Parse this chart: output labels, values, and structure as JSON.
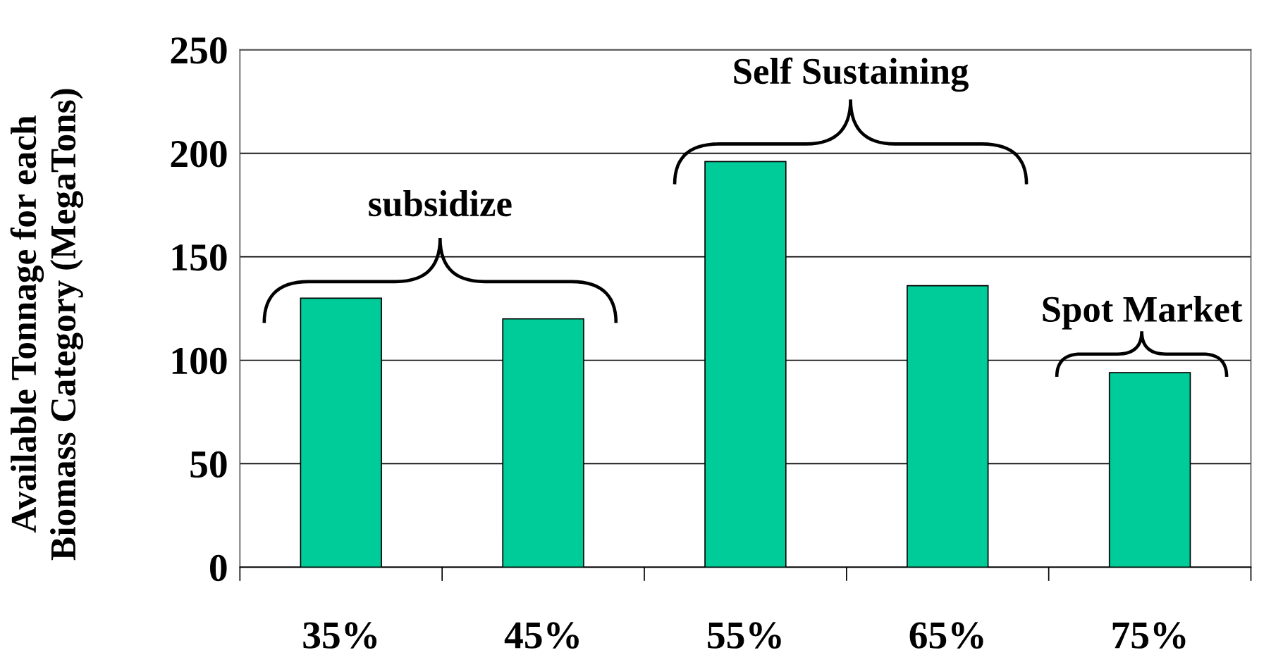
{
  "chart_data": {
    "type": "bar",
    "ylabel": "Available Tonnage for each\nBiomass Category (MegaTons)",
    "categories": [
      "35%",
      "45%",
      "55%",
      "65%",
      "75%"
    ],
    "values": [
      130,
      120,
      196,
      136,
      94
    ],
    "color": "#00cc99",
    "ylim": [
      0,
      250
    ],
    "yticks": [
      0,
      50,
      100,
      150,
      200,
      250
    ],
    "grid": "y",
    "annotations": [
      "subsidize",
      "Self Sustaining",
      "Spot Market"
    ]
  }
}
